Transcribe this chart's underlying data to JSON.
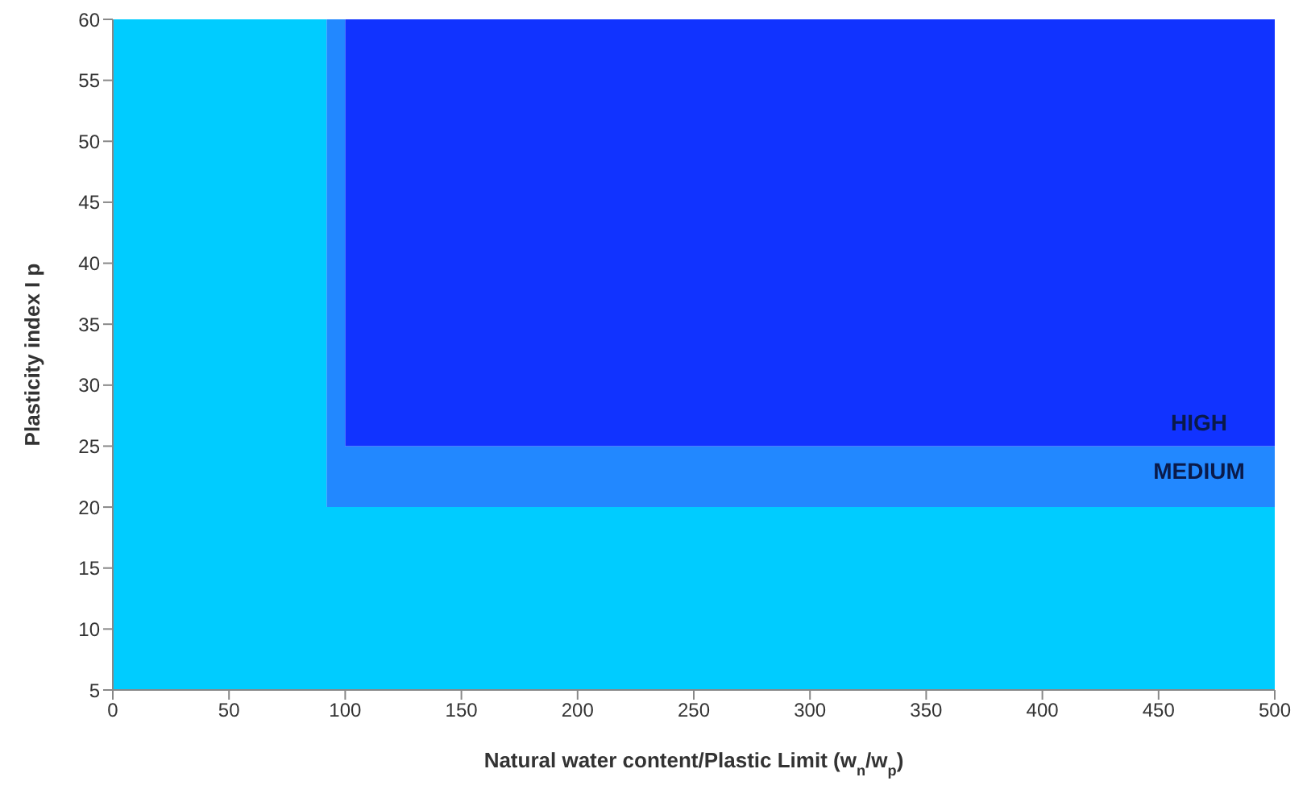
{
  "chart_data": {
    "type": "area",
    "stacked": true,
    "xlabel": "Natural water content/Plastic Limit (w$_{n}$/w$_{p}$)",
    "ylabel": "Plasticity index I p",
    "xlim": [
      0,
      500
    ],
    "xticks": [
      0,
      50,
      100,
      150,
      200,
      250,
      300,
      350,
      400,
      450,
      500
    ],
    "ylim": [
      5,
      60
    ],
    "yticks": [
      5,
      10,
      15,
      20,
      25,
      30,
      35,
      40,
      45,
      50,
      55,
      60
    ],
    "x": [
      0,
      92,
      92,
      100,
      100,
      500
    ],
    "series": [
      {
        "color": "#00ccff",
        "values": [
          60,
          60,
          20,
          20,
          20,
          20
        ]
      },
      {
        "color": "#2288ff",
        "values": [
          null,
          null,
          40,
          40,
          5,
          5
        ]
      },
      {
        "color": "#1133ff",
        "values": [
          null,
          null,
          null,
          null,
          35,
          35
        ]
      }
    ],
    "annotations": [
      "HIGH",
      "MEDIUM"
    ]
  }
}
